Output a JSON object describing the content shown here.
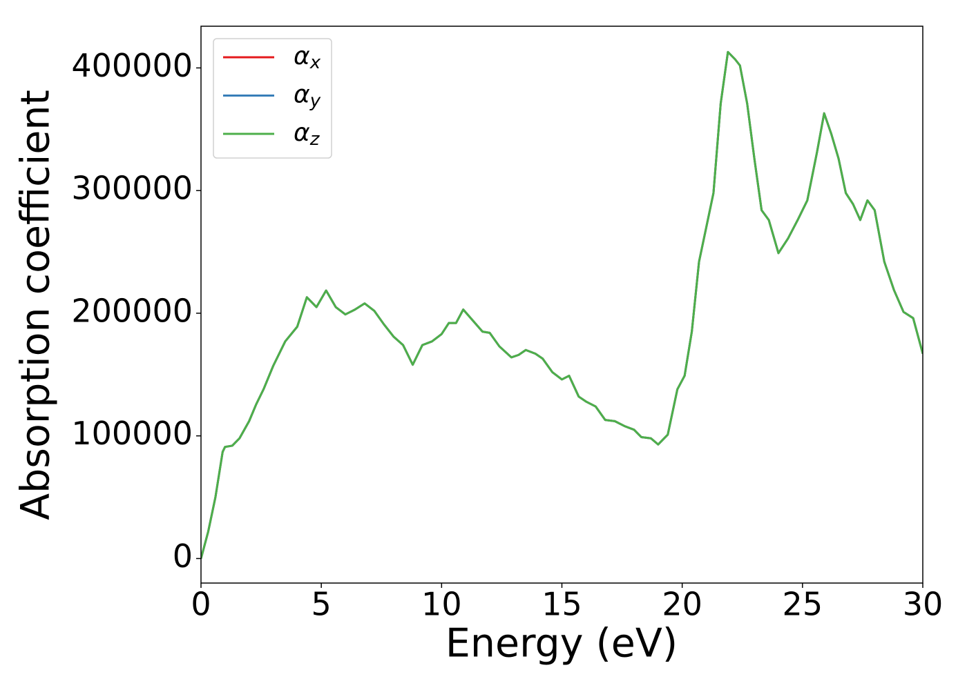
{
  "chart_data": {
    "type": "line",
    "xlabel": "Energy (eV)",
    "ylabel": "Absorption coefficient",
    "x": [
      0,
      0.3,
      0.6,
      0.9,
      1.0,
      1.3,
      1.6,
      2.0,
      2.3,
      2.6,
      3.0,
      3.5,
      4.0,
      4.4,
      4.8,
      5.2,
      5.6,
      6.0,
      6.4,
      6.8,
      7.2,
      7.6,
      8.0,
      8.4,
      8.8,
      9.2,
      9.6,
      10.0,
      10.3,
      10.6,
      10.9,
      11.3,
      11.7,
      12.0,
      12.4,
      12.9,
      13.2,
      13.5,
      13.9,
      14.2,
      14.6,
      15.0,
      15.3,
      15.7,
      16.0,
      16.4,
      16.8,
      17.2,
      17.6,
      18.0,
      18.3,
      18.7,
      19.0,
      19.4,
      19.8,
      20.1,
      20.4,
      20.7,
      21.0,
      21.3,
      21.6,
      21.9,
      22.2,
      22.4,
      22.7,
      23.0,
      23.3,
      23.6,
      24.0,
      24.4,
      24.8,
      25.2,
      25.6,
      25.9,
      26.2,
      26.5,
      26.8,
      27.1,
      27.4,
      27.7,
      28.0,
      28.4,
      28.8,
      29.2,
      29.6,
      30.0
    ],
    "series": [
      {
        "name": "αx",
        "color": "#e41a1c",
        "values": [
          0,
          22000,
          50000,
          87000,
          91000,
          92000,
          98000,
          112000,
          126000,
          138000,
          157000,
          177000,
          189000,
          213000,
          205000,
          218500,
          205000,
          199000,
          203000,
          208000,
          202000,
          191000,
          181000,
          174000,
          158000,
          174000,
          177000,
          183000,
          192000,
          192000,
          203000,
          194000,
          185000,
          184000,
          173000,
          164000,
          166000,
          170000,
          167000,
          163000,
          152000,
          146000,
          149000,
          132000,
          128000,
          124000,
          113000,
          112000,
          108000,
          105000,
          99000,
          98000,
          93000,
          101000,
          138000,
          149000,
          185000,
          242000,
          270000,
          298000,
          371000,
          413000,
          407000,
          402000,
          371000,
          326000,
          284000,
          276000,
          249000,
          261000,
          276000,
          292000,
          331000,
          363000,
          346000,
          326000,
          298000,
          289000,
          276000,
          292000,
          284000,
          242000,
          219000,
          201000,
          196000,
          167000
        ]
      },
      {
        "name": "αy",
        "color": "#377eb8",
        "values": [
          0,
          22000,
          50000,
          87000,
          91000,
          92000,
          98000,
          112000,
          126000,
          138000,
          157000,
          177000,
          189000,
          213000,
          205000,
          218500,
          205000,
          199000,
          203000,
          208000,
          202000,
          191000,
          181000,
          174000,
          158000,
          174000,
          177000,
          183000,
          192000,
          192000,
          203000,
          194000,
          185000,
          184000,
          173000,
          164000,
          166000,
          170000,
          167000,
          163000,
          152000,
          146000,
          149000,
          132000,
          128000,
          124000,
          113000,
          112000,
          108000,
          105000,
          99000,
          98000,
          93000,
          101000,
          138000,
          149000,
          185000,
          242000,
          270000,
          298000,
          371000,
          413000,
          407000,
          402000,
          371000,
          326000,
          284000,
          276000,
          249000,
          261000,
          276000,
          292000,
          331000,
          363000,
          346000,
          326000,
          298000,
          289000,
          276000,
          292000,
          284000,
          242000,
          219000,
          201000,
          196000,
          167000
        ]
      },
      {
        "name": "αz",
        "color": "#4daf4a",
        "values": [
          0,
          22000,
          50000,
          87000,
          91000,
          92000,
          98000,
          112000,
          126000,
          138000,
          157000,
          177000,
          189000,
          213000,
          205000,
          218500,
          205000,
          199000,
          203000,
          208000,
          202000,
          191000,
          181000,
          174000,
          158000,
          174000,
          177000,
          183000,
          192000,
          192000,
          203000,
          194000,
          185000,
          184000,
          173000,
          164000,
          166000,
          170000,
          167000,
          163000,
          152000,
          146000,
          149000,
          132000,
          128000,
          124000,
          113000,
          112000,
          108000,
          105000,
          99000,
          98000,
          93000,
          101000,
          138000,
          149000,
          185000,
          242000,
          270000,
          298000,
          371000,
          413000,
          407000,
          402000,
          371000,
          326000,
          284000,
          276000,
          249000,
          261000,
          276000,
          292000,
          331000,
          363000,
          346000,
          326000,
          298000,
          289000,
          276000,
          292000,
          284000,
          242000,
          219000,
          201000,
          196000,
          167000
        ]
      }
    ],
    "xlim": [
      0,
      30
    ],
    "xticks": [
      0,
      5,
      10,
      15,
      20,
      25,
      30
    ],
    "ylim": [
      -20000,
      434000
    ],
    "yticks": [
      0,
      100000,
      200000,
      300000,
      400000
    ],
    "grid": false,
    "legend": "upper left"
  }
}
